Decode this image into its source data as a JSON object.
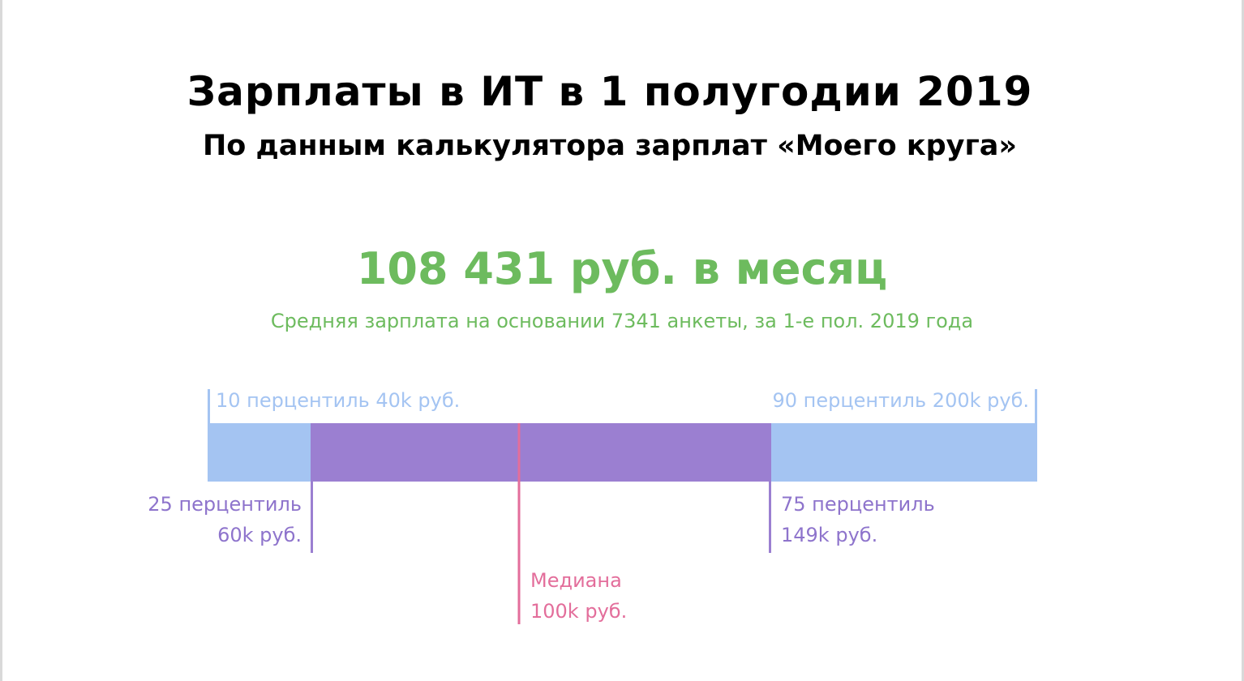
{
  "title": "Зарплаты в ИТ в 1 полугодии 2019",
  "subtitle": "По данным калькулятора зарплат «Моего круга»",
  "headline": "108 431 руб. в месяц",
  "caption": "Средняя зарплата на основании 7341 анкеты, за 1-е пол. 2019 года",
  "colors": {
    "green": "#6dbb5e",
    "outer_range": "#a4c4f2",
    "inner_range": "#9b7fd1",
    "median": "#e36e9b",
    "outer_label": "#a4c4f2",
    "inner_label": "#8e74cc"
  },
  "chart_data": {
    "type": "box",
    "unit": "k руб.",
    "p10": 40,
    "p25": 60,
    "median": 100,
    "p75": 149,
    "p90": 200,
    "labels": {
      "p10": "10 перцентиль 40k руб.",
      "p90": "90 перцентиль 200k руб.",
      "p25_line1": "25 перцентиль",
      "p25_line2": "60k руб.",
      "p75_line1": "75 перцентиль",
      "p75_line2": "149k руб.",
      "median_line1": "Медиана",
      "median_line2": "100k руб."
    }
  }
}
